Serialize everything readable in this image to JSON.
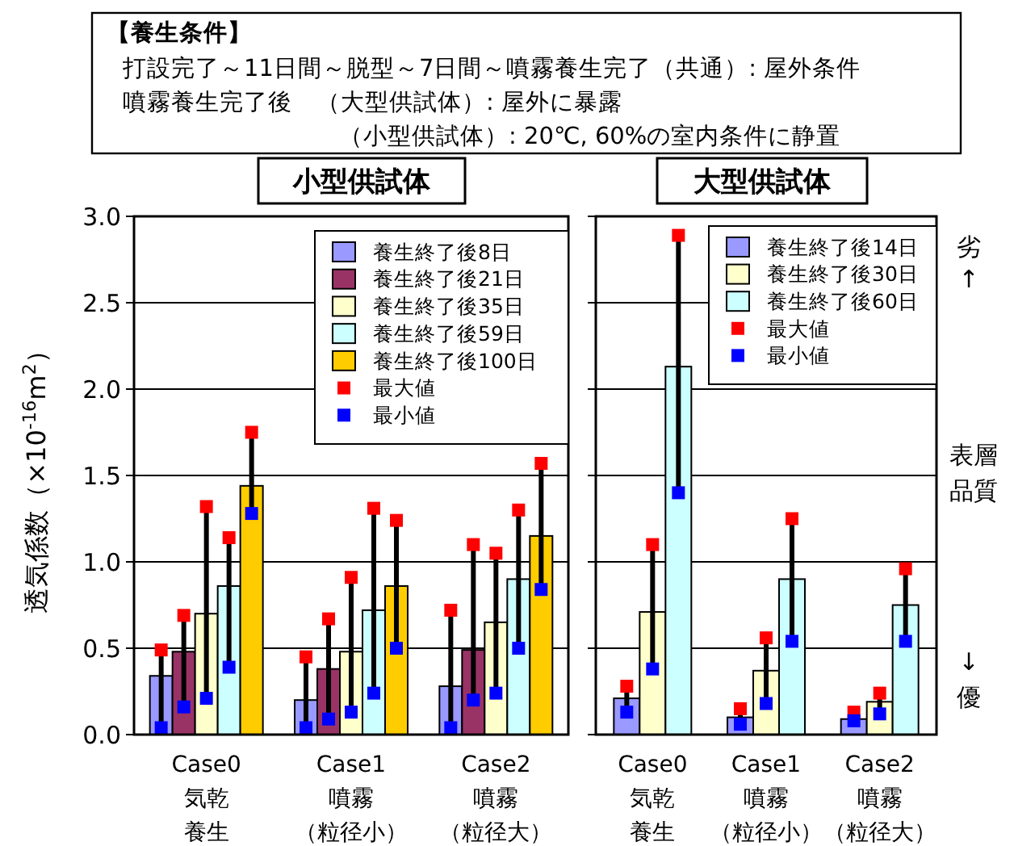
{
  "chart_data": [
    {
      "type": "bar",
      "title": "小型供試体",
      "ylabel": "透気係数（×10$^{-16}$m$^{2}$）",
      "annotations": [
        "【養生条件】",
        "打設完了～11日間～脱型～7日間～噴霧養生完了（共通）: 屋外条件",
        "噴霧養生完了後　（大型供試体）: 屋外に暴露",
        "（小型供試体）: 20℃, 60%の室内条件に静置"
      ],
      "categories": [
        "Case0気乾養生",
        "Case1噴霧（粒径小）",
        "Case2噴霧（粒径大）"
      ],
      "ylim": [
        0,
        3
      ],
      "yticks": [
        {
          "value": 0,
          "label": "0.0"
        },
        {
          "value": 0.5,
          "label": "0.5"
        },
        {
          "value": 1,
          "label": "1.0"
        },
        {
          "value": 1.5,
          "label": "1.5"
        },
        {
          "value": 2,
          "label": "2.0"
        },
        {
          "value": 2.5,
          "label": "2.5"
        },
        {
          "value": 3,
          "label": "3.0"
        }
      ],
      "grid": "y",
      "legend": "top right",
      "series": [
        {
          "name": "養生終了後8日",
          "color": "#9999ff",
          "values": [
            0.34,
            0.2,
            0.28
          ]
        },
        {
          "name": "養生終了後21日",
          "color": "#993366",
          "values": [
            0.48,
            0.38,
            0.49
          ]
        },
        {
          "name": "養生終了後35日",
          "color": "#ffffcc",
          "values": [
            0.7,
            0.48,
            0.65
          ]
        },
        {
          "name": "養生終了後59日",
          "color": "#ccffff",
          "values": [
            0.86,
            0.72,
            0.9
          ]
        },
        {
          "name": "養生終了後100日",
          "color": "#ffcc00",
          "values": [
            1.44,
            0.86,
            1.15
          ]
        },
        {
          "name": "最大値",
          "type": "scatter",
          "marker": "square",
          "color": "#ff0000",
          "x": [
            "Case0気乾養生",
            "Case0気乾養生",
            "Case0気乾養生",
            "Case0気乾養生",
            "Case0気乾養生",
            "Case1噴霧（粒径小）",
            "Case1噴霧（粒径小）",
            "Case1噴霧（粒径小）",
            "Case1噴霧（粒径小）",
            "Case1噴霧（粒径小）",
            "Case2噴霧（粒径大）",
            "Case2噴霧（粒径大）",
            "Case2噴霧（粒径大）",
            "Case2噴霧（粒径大）",
            "Case2噴霧（粒径大）"
          ],
          "values": [
            0.49,
            0.69,
            1.32,
            1.14,
            1.75,
            0.45,
            0.67,
            0.91,
            1.31,
            1.24,
            0.72,
            1.1,
            1.05,
            1.3,
            1.57
          ]
        },
        {
          "name": "最小値",
          "type": "scatter",
          "marker": "square",
          "color": "#0000ff",
          "x": [
            "Case0気乾養生",
            "Case0気乾養生",
            "Case0気乾養生",
            "Case0気乾養生",
            "Case0気乾養生",
            "Case1噴霧（粒径小）",
            "Case1噴霧（粒径小）",
            "Case1噴霧（粒径小）",
            "Case1噴霧（粒径小）",
            "Case1噴霧（粒径小）",
            "Case2噴霧（粒径大）",
            "Case2噴霧（粒径大）",
            "Case2噴霧（粒径大）",
            "Case2噴霧（粒径大）",
            "Case2噴霧（粒径大）"
          ],
          "values": [
            0.04,
            0.16,
            0.21,
            0.39,
            1.28,
            0.04,
            0.09,
            0.13,
            0.24,
            0.5,
            0.04,
            0.2,
            0.24,
            0.5,
            0.84
          ]
        }
      ]
    },
    {
      "type": "bar",
      "title": "大型供試体",
      "annotations": [
        "劣",
        "↑",
        "表層品質",
        "↓",
        "優"
      ],
      "categories": [
        "Case0気乾養生",
        "Case1噴霧（粒径小）",
        "Case2噴霧（粒径大）"
      ],
      "ylim": [
        0,
        3
      ],
      "yticks": [
        {
          "value": 0,
          "label": null
        },
        {
          "value": 0.5,
          "label": null
        },
        {
          "value": 1,
          "label": null
        },
        {
          "value": 1.5,
          "label": null
        },
        {
          "value": 2,
          "label": null
        },
        {
          "value": 2.5,
          "label": null
        },
        {
          "value": 3,
          "label": null
        }
      ],
      "tick_labels": "x",
      "grid": "y",
      "legend": "top right",
      "series": [
        {
          "name": "養生終了後14日",
          "color": "#9999ff",
          "values": [
            0.21,
            0.1,
            0.09
          ]
        },
        {
          "name": "養生終了後30日",
          "color": "#ffffcc",
          "values": [
            0.71,
            0.37,
            0.19
          ]
        },
        {
          "name": "養生終了後60日",
          "color": "#ccffff",
          "values": [
            2.13,
            0.9,
            0.75
          ]
        },
        {
          "name": "最大値",
          "type": "scatter",
          "marker": "square",
          "color": "#ff0000",
          "x": [
            "Case0気乾養生",
            "Case0気乾養生",
            "Case0気乾養生",
            "Case1噴霧（粒径小）",
            "Case1噴霧（粒径小）",
            "Case1噴霧（粒径小）",
            "Case2噴霧（粒径大）",
            "Case2噴霧（粒径大）",
            "Case2噴霧（粒径大）"
          ],
          "values": [
            0.28,
            1.1,
            2.89,
            0.15,
            0.56,
            1.25,
            0.13,
            0.24,
            0.96
          ]
        },
        {
          "name": "最小値",
          "type": "scatter",
          "marker": "square",
          "color": "#0000ff",
          "x": [
            "Case0気乾養生",
            "Case0気乾養生",
            "Case0気乾養生",
            "Case1噴霧（粒径小）",
            "Case1噴霧（粒径小）",
            "Case1噴霧（粒径小）",
            "Case2噴霧（粒径大）",
            "Case2噴霧（粒径大）",
            "Case2噴霧（粒径大）"
          ],
          "values": [
            0.13,
            0.38,
            1.4,
            0.06,
            0.18,
            0.54,
            0.08,
            0.12,
            0.54
          ]
        }
      ]
    }
  ]
}
